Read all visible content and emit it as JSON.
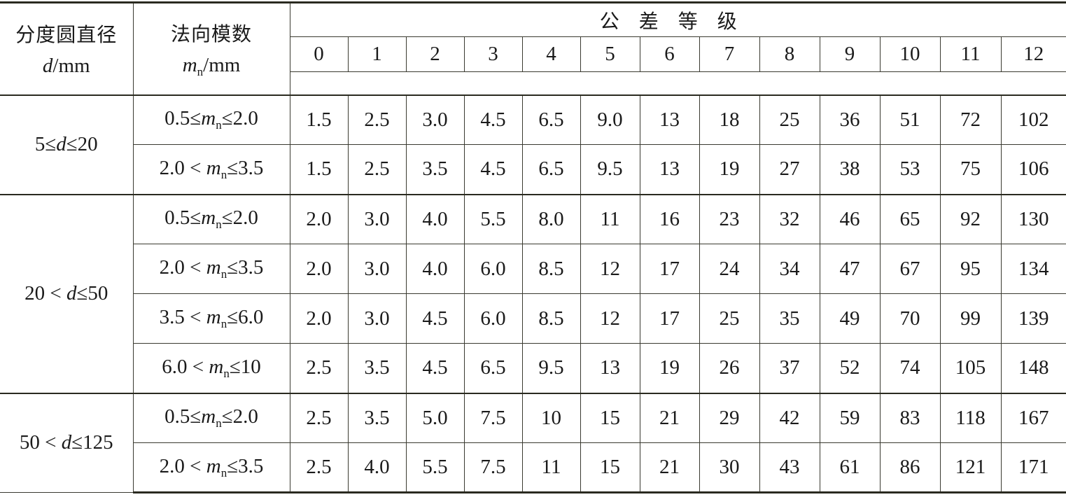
{
  "header": {
    "col_d": {
      "title": "分度圆直径",
      "var": "d",
      "unit": "/mm"
    },
    "col_mn": {
      "title": "法向模数",
      "var": "m",
      "sub": "n",
      "unit": "/mm"
    },
    "grade_title": "公差等级",
    "grades": [
      "0",
      "1",
      "2",
      "3",
      "4",
      "5",
      "6",
      "7",
      "8",
      "9",
      "10",
      "11",
      "12"
    ]
  },
  "groups": [
    {
      "d_range": {
        "pre": "5≤",
        "var": "d",
        "post": "≤20"
      },
      "rows": [
        {
          "mn": {
            "pre": "0.5≤",
            "var": "m",
            "sub": "n",
            "post": "≤2.0"
          },
          "values": [
            "1.5",
            "2.5",
            "3.0",
            "4.5",
            "6.5",
            "9.0",
            "13",
            "18",
            "25",
            "36",
            "51",
            "72",
            "102"
          ]
        },
        {
          "mn": {
            "pre": "2.0 < ",
            "var": "m",
            "sub": "n",
            "post": "≤3.5"
          },
          "values": [
            "1.5",
            "2.5",
            "3.5",
            "4.5",
            "6.5",
            "9.5",
            "13",
            "19",
            "27",
            "38",
            "53",
            "75",
            "106"
          ]
        }
      ]
    },
    {
      "d_range": {
        "pre": "20 < ",
        "var": "d",
        "post": "≤50"
      },
      "rows": [
        {
          "mn": {
            "pre": "0.5≤",
            "var": "m",
            "sub": "n",
            "post": "≤2.0"
          },
          "values": [
            "2.0",
            "3.0",
            "4.0",
            "5.5",
            "8.0",
            "11",
            "16",
            "23",
            "32",
            "46",
            "65",
            "92",
            "130"
          ]
        },
        {
          "mn": {
            "pre": "2.0 < ",
            "var": "m",
            "sub": "n",
            "post": "≤3.5"
          },
          "values": [
            "2.0",
            "3.0",
            "4.0",
            "6.0",
            "8.5",
            "12",
            "17",
            "24",
            "34",
            "47",
            "67",
            "95",
            "134"
          ]
        },
        {
          "mn": {
            "pre": "3.5 < ",
            "var": "m",
            "sub": "n",
            "post": "≤6.0"
          },
          "values": [
            "2.0",
            "3.0",
            "4.5",
            "6.0",
            "8.5",
            "12",
            "17",
            "25",
            "35",
            "49",
            "70",
            "99",
            "139"
          ]
        },
        {
          "mn": {
            "pre": "6.0 < ",
            "var": "m",
            "sub": "n",
            "post": "≤10"
          },
          "values": [
            "2.5",
            "3.5",
            "4.5",
            "6.5",
            "9.5",
            "13",
            "19",
            "26",
            "37",
            "52",
            "74",
            "105",
            "148"
          ]
        }
      ]
    },
    {
      "d_range": {
        "pre": "50 < ",
        "var": "d",
        "post": "≤125"
      },
      "rows": [
        {
          "mn": {
            "pre": "0.5≤",
            "var": "m",
            "sub": "n",
            "post": "≤2.0"
          },
          "values": [
            "2.5",
            "3.5",
            "5.0",
            "7.5",
            "10",
            "15",
            "21",
            "29",
            "42",
            "59",
            "83",
            "118",
            "167"
          ]
        },
        {
          "mn": {
            "pre": "2.0 < ",
            "var": "m",
            "sub": "n",
            "post": "≤3.5"
          },
          "values": [
            "2.5",
            "4.0",
            "5.5",
            "7.5",
            "11",
            "15",
            "21",
            "30",
            "43",
            "61",
            "86",
            "121",
            "171"
          ]
        }
      ]
    }
  ]
}
